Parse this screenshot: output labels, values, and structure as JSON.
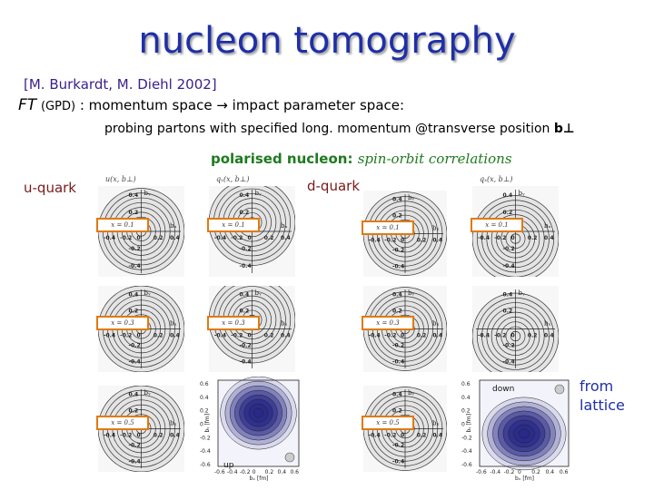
{
  "slide": {
    "title": "nucleon tomography",
    "reference": "[M. Burkardt, M. Diehl 2002]",
    "ft_prefix": "FT",
    "ft_gpd": "(GPD)",
    "ft_text": ": momentum space → impact parameter space:",
    "probing_text": "probing partons with specified long. momentum @transverse position",
    "probing_bold": "b⊥",
    "polarised_label": "polarised nucleon:",
    "polarised_italic": "spin-orbit correlations",
    "u_quark": "u-quark",
    "d_quark": "d-quark",
    "from_lattice_1": "from",
    "from_lattice_2": "lattice"
  },
  "figure": {
    "u_column_label": "u(x, b⊥)",
    "pol_column_label": "qₓ(x, b⊥)",
    "axis_bx": "bₓ",
    "axis_by": "bᵧ",
    "x_labels": [
      "x = 0.1",
      "x = 0.3",
      "x = 0.5"
    ],
    "tick_labels": [
      "-0.4",
      "-0.2",
      "0",
      "0.2",
      "0.4"
    ],
    "lattice_labels": {
      "up": "up",
      "down": "down",
      "xaxis": "bₓ [fm]",
      "yaxis": "bᵧ [fm]"
    },
    "lattice_ticks_y": [
      "0.6",
      "0.4",
      "0.2",
      "0",
      "-0.2",
      "-0.4",
      "-0.6"
    ],
    "lattice_ticks_x": [
      "-0.6",
      "-0.4",
      "-0.2",
      "0",
      "0.2",
      "0.4",
      "0.6"
    ],
    "colors": {
      "contour": "#333333",
      "fill": "#d9d9d9",
      "box": "#e07a10",
      "lattice": "#2a2a8a"
    }
  }
}
